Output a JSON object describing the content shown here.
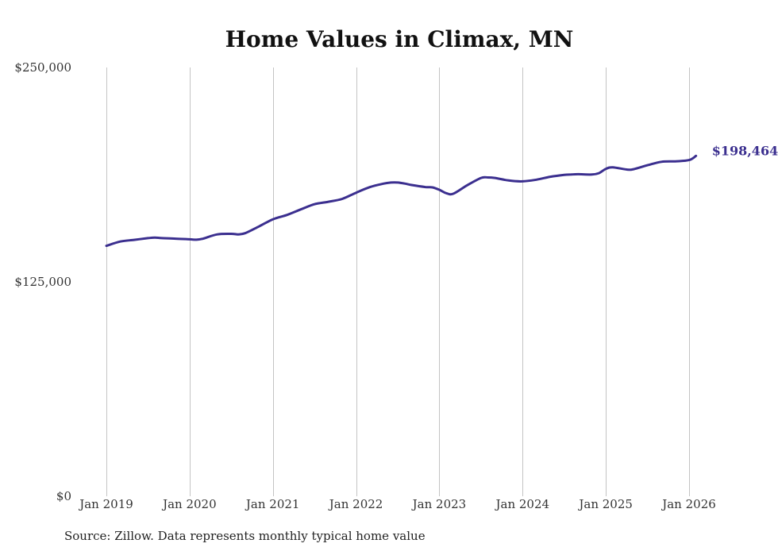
{
  "chart_data": {
    "type": "line",
    "title": "Home Values in Climax, MN",
    "xlabel": "",
    "ylabel": "",
    "ylim": [
      0,
      250000
    ],
    "y_ticks": [
      {
        "value": 0,
        "label": "$0"
      },
      {
        "value": 125000,
        "label": "$125,000"
      },
      {
        "value": 250000,
        "label": "$250,000"
      }
    ],
    "x_ticks": [
      {
        "value": 2019,
        "label": "Jan 2019"
      },
      {
        "value": 2020,
        "label": "Jan 2020"
      },
      {
        "value": 2021,
        "label": "Jan 2021"
      },
      {
        "value": 2022,
        "label": "Jan 2022"
      },
      {
        "value": 2023,
        "label": "Jan 2023"
      },
      {
        "value": 2024,
        "label": "Jan 2024"
      },
      {
        "value": 2025,
        "label": "Jan 2025"
      },
      {
        "value": 2026,
        "label": "Jan 2026"
      }
    ],
    "xlim": [
      2019,
      2026
    ],
    "grid": "vertical",
    "series": [
      {
        "name": "Typical home value",
        "color": "#3b2f8f",
        "x": [
          2019.0,
          2019.167,
          2019.333,
          2019.5,
          2019.583,
          2019.667,
          2019.833,
          2020.0,
          2020.083,
          2020.167,
          2020.333,
          2020.5,
          2020.583,
          2020.667,
          2020.833,
          2021.0,
          2021.167,
          2021.333,
          2021.5,
          2021.667,
          2021.833,
          2022.0,
          2022.167,
          2022.333,
          2022.417,
          2022.5,
          2022.583,
          2022.667,
          2022.833,
          2022.917,
          2023.0,
          2023.083,
          2023.167,
          2023.333,
          2023.5,
          2023.583,
          2023.667,
          2023.833,
          2024.0,
          2024.167,
          2024.333,
          2024.5,
          2024.583,
          2024.667,
          2024.833,
          2024.917,
          2025.0,
          2025.083,
          2025.25,
          2025.333,
          2025.5,
          2025.667,
          2025.833,
          2026.0,
          2026.083
        ],
        "values": [
          146000,
          148500,
          149500,
          150500,
          150800,
          150500,
          150200,
          149800,
          149600,
          150300,
          152700,
          153000,
          152700,
          153400,
          157300,
          161500,
          164000,
          167200,
          170300,
          171700,
          173400,
          177000,
          180300,
          182300,
          182900,
          182900,
          182300,
          181500,
          180300,
          180100,
          178700,
          176700,
          176400,
          181300,
          185600,
          185900,
          185600,
          184100,
          183600,
          184600,
          186300,
          187400,
          187600,
          187800,
          187600,
          188400,
          190900,
          191800,
          190500,
          190700,
          193000,
          195000,
          195300,
          196000,
          198464
        ]
      }
    ],
    "end_label": "$198,464"
  },
  "source": "Source: Zillow. Data represents monthly typical home value"
}
